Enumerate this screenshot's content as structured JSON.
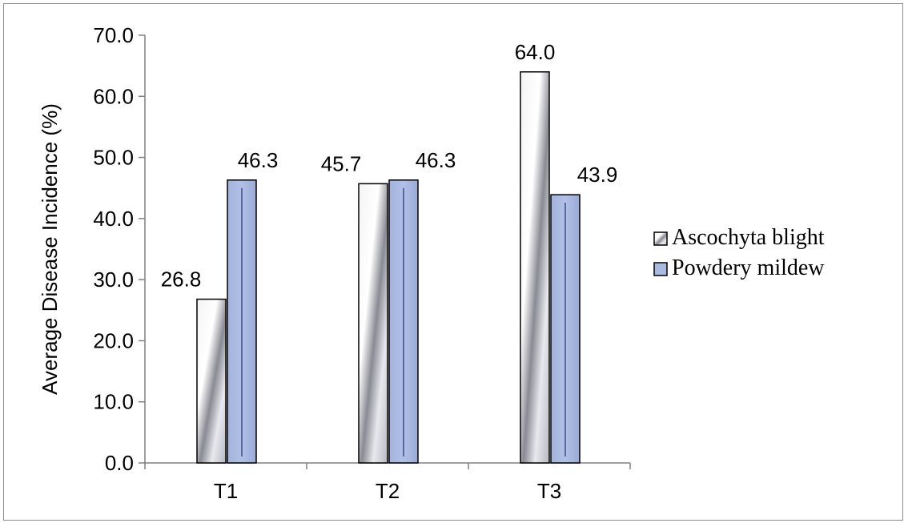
{
  "chart_data": {
    "type": "bar",
    "title": "",
    "xlabel": "",
    "ylabel": "Average Disease  Incidence (%)",
    "categories": [
      "T1",
      "T2",
      "T3"
    ],
    "series": [
      {
        "name": "Ascochyta blight",
        "values": [
          26.8,
          45.7,
          64.0
        ],
        "labels": [
          "26.8",
          "45.7",
          "64.0"
        ],
        "color": "#c8c8d0",
        "style": "gradient-silver"
      },
      {
        "name": "Powdery mildew",
        "values": [
          46.3,
          46.3,
          43.9
        ],
        "labels": [
          "46.3",
          "46.3",
          "43.9"
        ],
        "color": "#a9b9e0",
        "style": "gradient-blue"
      }
    ],
    "ylim": [
      0,
      70
    ],
    "yticks": [
      0,
      10,
      20,
      30,
      40,
      50,
      60,
      70
    ],
    "ytick_labels": [
      "0.0",
      "10.0",
      "20.0",
      "30.0",
      "40.0",
      "50.0",
      "60.0",
      "70.0"
    ],
    "grid": false,
    "legend_position": "right"
  }
}
